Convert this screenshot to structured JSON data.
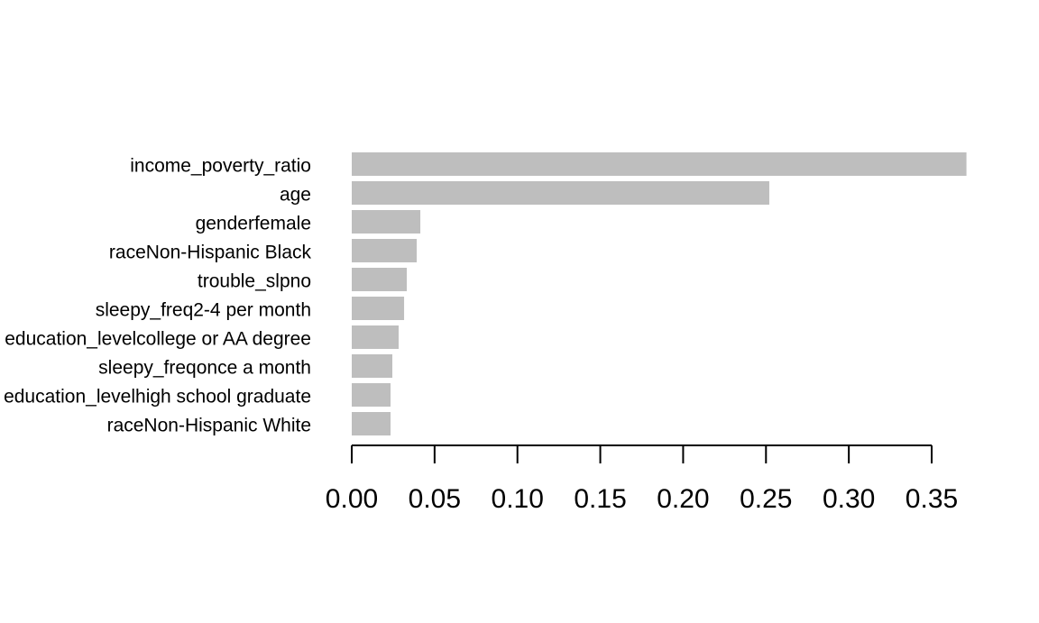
{
  "chart_data": {
    "type": "barh",
    "categories": [
      "income_poverty_ratio",
      "age",
      "genderfemale",
      "raceNon-Hispanic Black",
      "trouble_slpno",
      "sleepy_freq2-4 per month",
      "education_levelcollege or AA degree",
      "sleepy_freqonce a month",
      "education_levelhigh school graduate",
      "raceNon-Hispanic White"
    ],
    "values": [
      0.371,
      0.252,
      0.0414,
      0.0392,
      0.0332,
      0.0316,
      0.0283,
      0.0245,
      0.0234,
      0.0234
    ],
    "color": "#bebebe",
    "xlim": [
      0,
      0.35
    ],
    "xticks": [
      {
        "value": 0,
        "label": "0.00"
      },
      {
        "value": 0.05,
        "label": "0.05"
      },
      {
        "value": 0.1,
        "label": "0.10"
      },
      {
        "value": 0.15,
        "label": "0.15"
      },
      {
        "value": 0.2,
        "label": "0.20"
      },
      {
        "value": 0.25,
        "label": "0.25"
      },
      {
        "value": 0.3,
        "label": "0.30"
      },
      {
        "value": 0.35,
        "label": "0.35"
      }
    ]
  }
}
